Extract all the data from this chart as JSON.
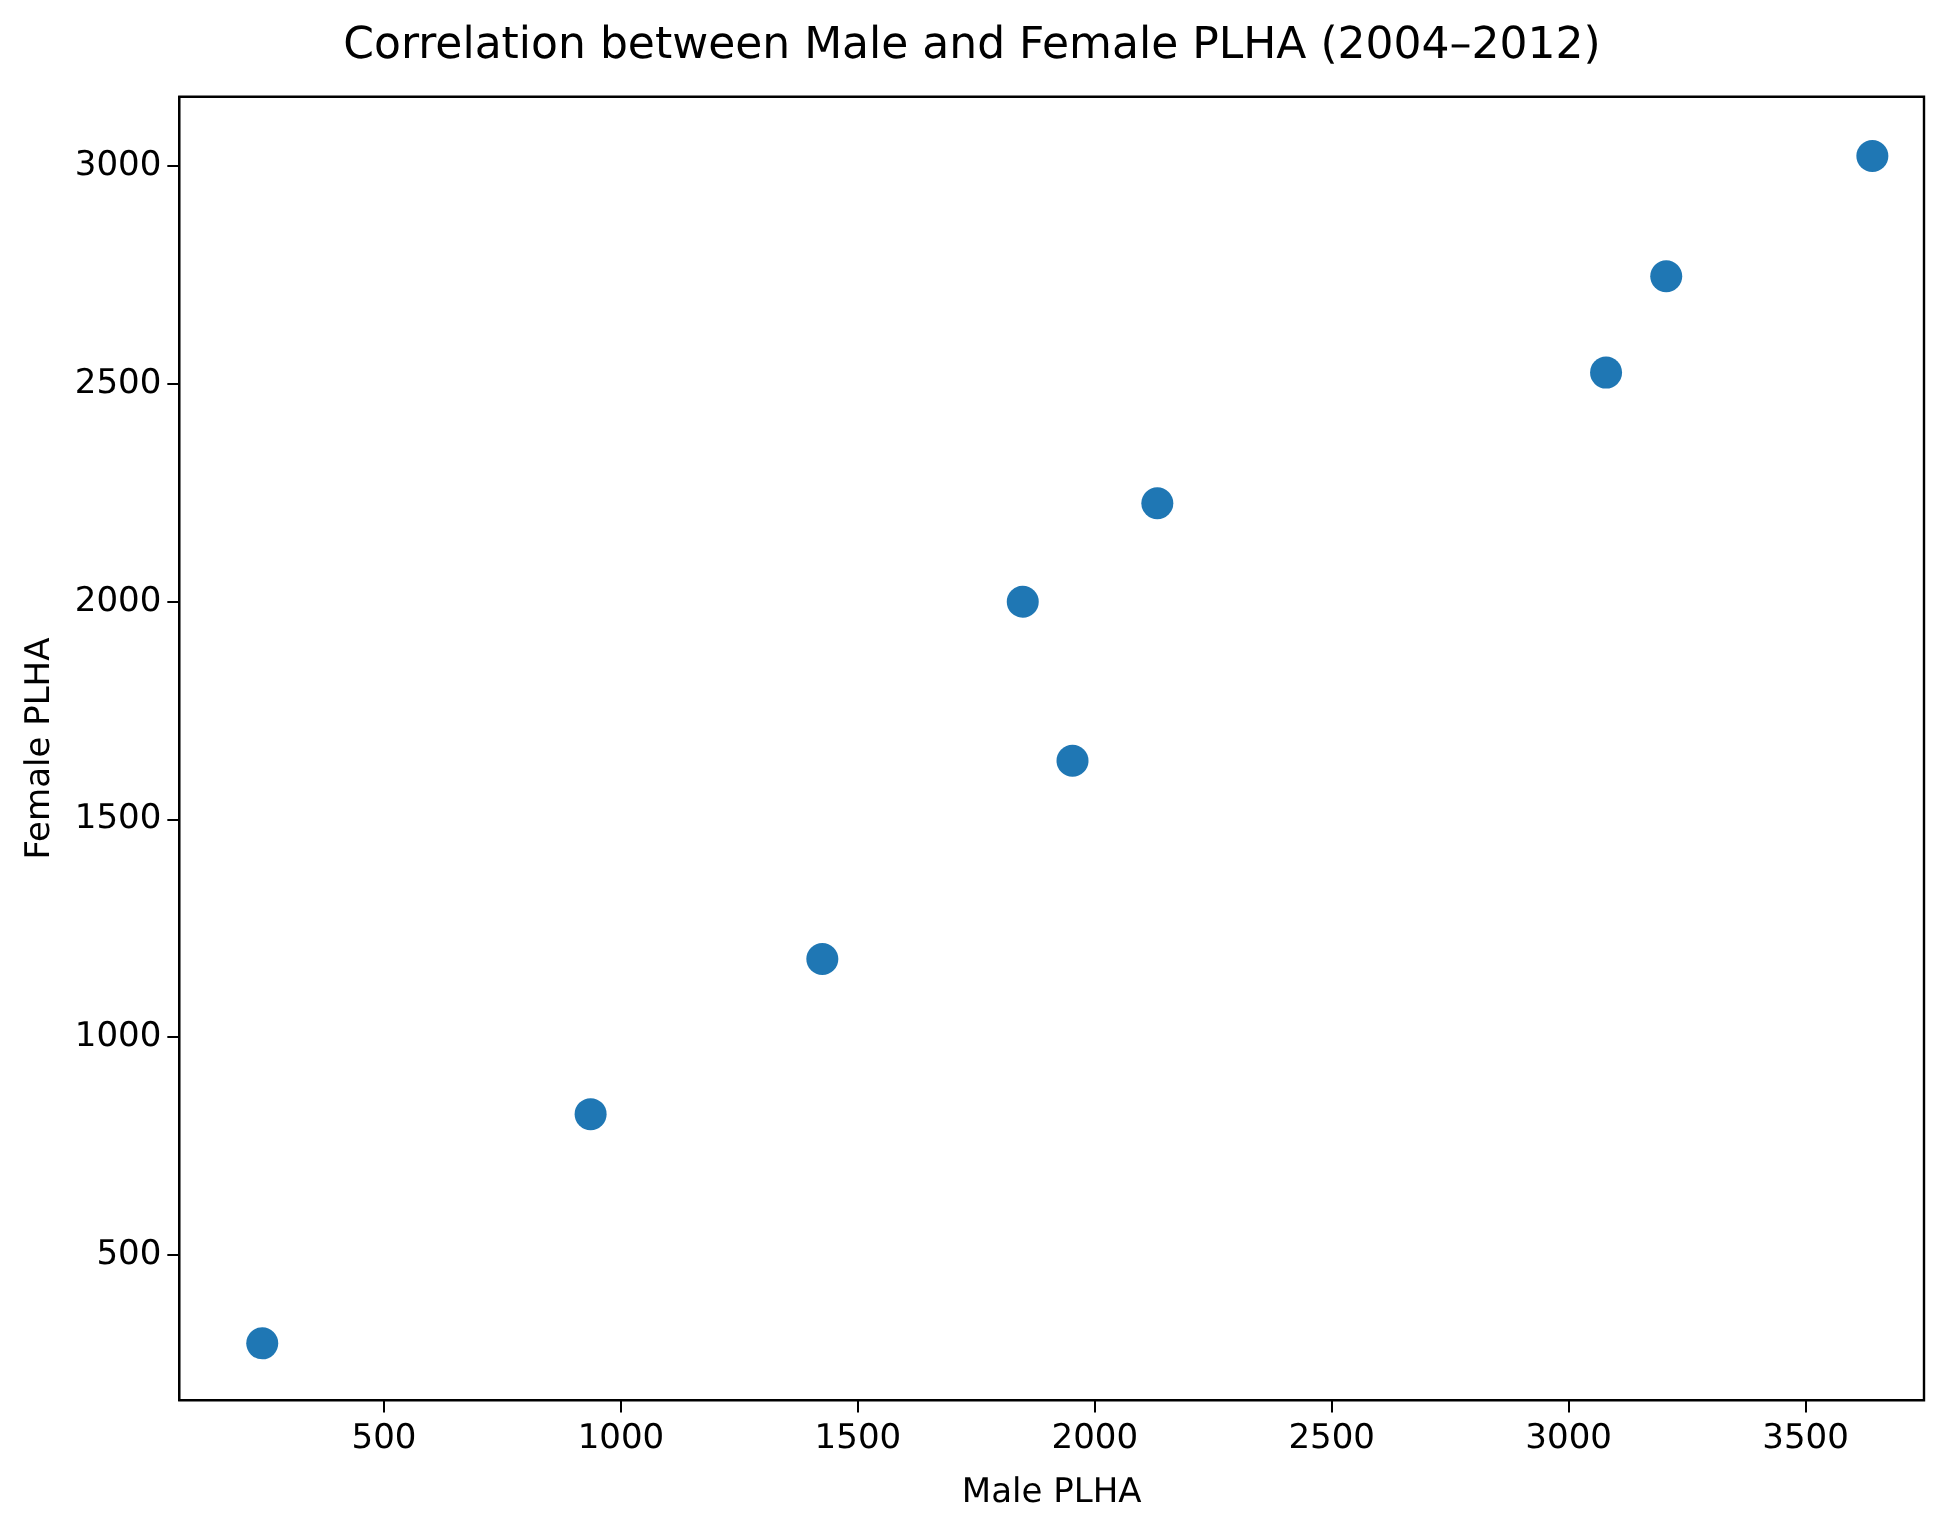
{
  "chart_data": {
    "type": "scatter",
    "title": "Correlation between Male and Female PLHA (2004–2012)",
    "xlabel": "Male PLHA",
    "ylabel": "Female PLHA",
    "series": [
      {
        "color": "#1f77b4",
        "x": [
          243,
          936,
          1425,
          1848,
          1953,
          2132,
          3079,
          3206,
          3641
        ],
        "values": [
          298,
          824,
          1180,
          2000,
          1635,
          2226,
          2526,
          2747,
          3023
        ]
      }
    ],
    "xlim": [
      68,
      3750
    ],
    "ylim": [
      167,
      3159
    ],
    "xticks": [
      500,
      1000,
      1500,
      2000,
      2500,
      3000,
      3500
    ],
    "yticks": [
      500,
      1000,
      1500,
      2000,
      2500,
      3000
    ],
    "grid": false,
    "legend": false,
    "marker": "circle"
  }
}
